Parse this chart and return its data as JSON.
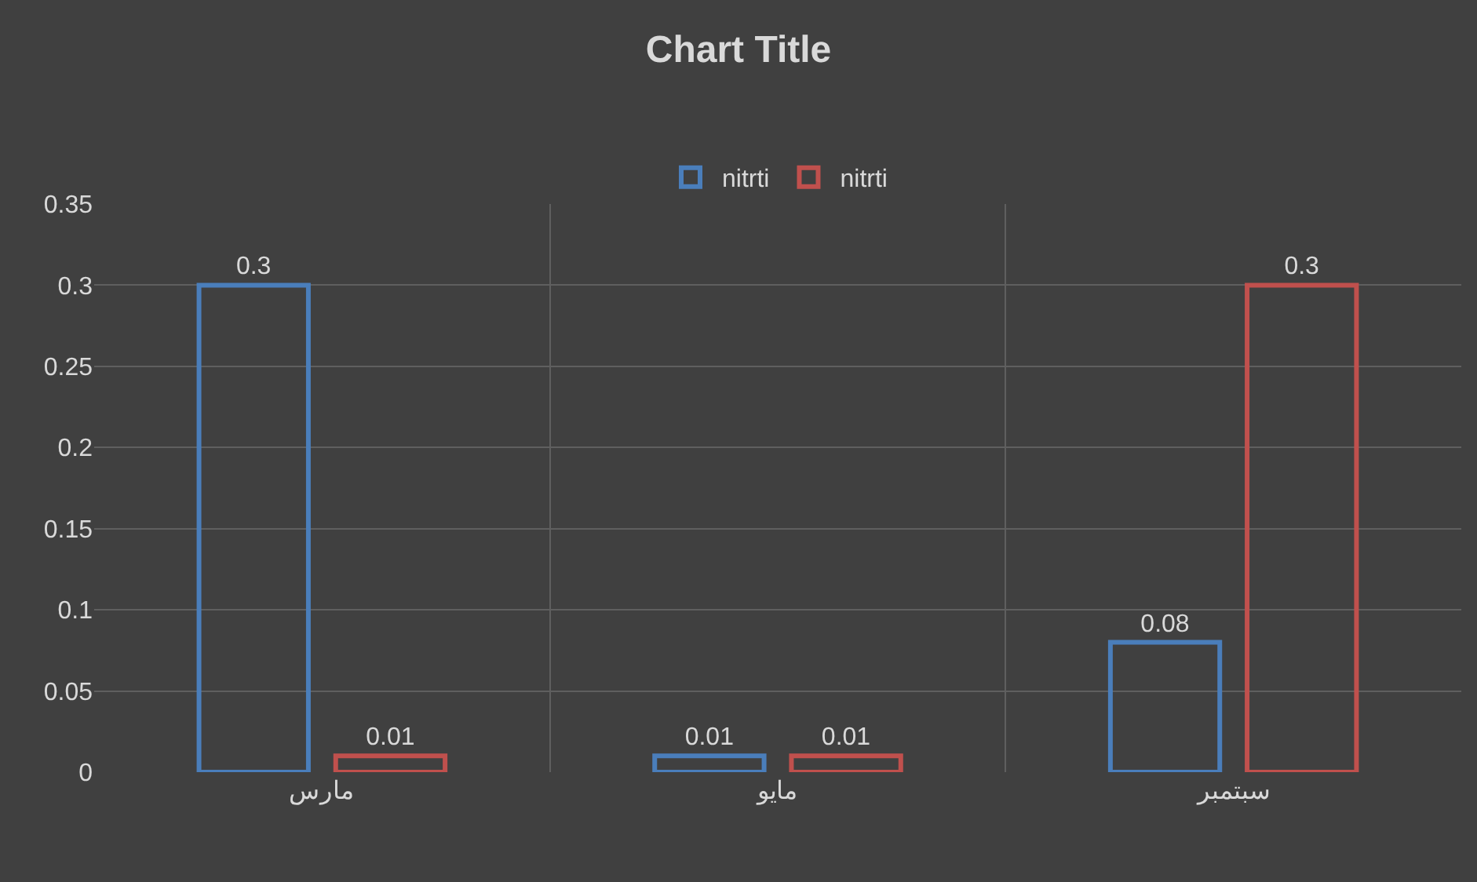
{
  "chart_data": {
    "type": "bar",
    "title": "Chart Title",
    "categories": [
      "مارس",
      "مايو",
      "سبتمبر"
    ],
    "series": [
      {
        "name": "nitrti",
        "color": "#4a7ebb",
        "values": [
          0.3,
          0.01,
          0.08
        ]
      },
      {
        "name": "nitrti",
        "color": "#c0504d",
        "values": [
          0.01,
          0.01,
          0.3
        ]
      }
    ],
    "ylim": [
      0,
      0.35
    ],
    "yticks": [
      0,
      0.05,
      0.1,
      0.15,
      0.2,
      0.25,
      0.3,
      0.35
    ],
    "grid": true,
    "legend": "top",
    "data_labels": true
  }
}
